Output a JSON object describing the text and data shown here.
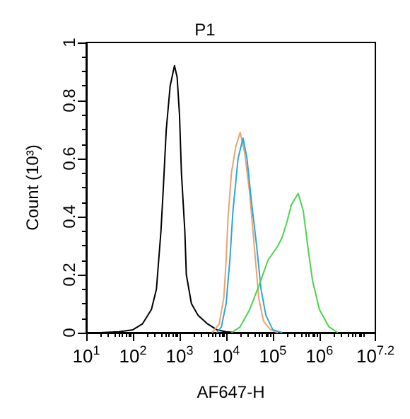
{
  "chart_data": {
    "type": "line",
    "title": "P1",
    "xlabel": "AF647-H",
    "ylabel": "Count (10³)",
    "log": "x",
    "grid": false,
    "marker": "none",
    "line_style": "solid",
    "xlim": [
      10,
      15848932
    ],
    "xticks": [
      {
        "value": 10,
        "label": "10$^{1}$"
      },
      {
        "value": 100,
        "label": "10$^{2}$"
      },
      {
        "value": 1000,
        "label": "10$^{3}$"
      },
      {
        "value": 10000,
        "label": "10$^{4}$"
      },
      {
        "value": 100000,
        "label": "10$^{5}$"
      },
      {
        "value": 1000000,
        "label": "10$^{6}$"
      },
      {
        "value": 15848932,
        "label": "10$^{7.2}$"
      }
    ],
    "ylim": [
      0,
      1
    ],
    "yticks": [
      0,
      0.2,
      0.4,
      0.6,
      0.8,
      1
    ],
    "series": [
      {
        "color": "#000000",
        "x": [
          20,
          50,
          100,
          160,
          250,
          320,
          400,
          450,
          520,
          630,
          780,
          890,
          1000,
          1100,
          1300,
          1400,
          1800,
          2500,
          4000,
          6300,
          10000,
          16000
        ],
        "values": [
          0,
          0.003,
          0.01,
          0.03,
          0.08,
          0.15,
          0.35,
          0.5,
          0.7,
          0.85,
          0.92,
          0.88,
          0.75,
          0.55,
          0.35,
          0.2,
          0.1,
          0.06,
          0.03,
          0.01,
          0.003,
          0
        ]
      },
      {
        "color": "#f0a070",
        "x": [
          5000,
          7100,
          8900,
          10000,
          11000,
          13000,
          16000,
          20000,
          25000,
          32000,
          40000,
          50000,
          63000,
          89000,
          130000
        ],
        "values": [
          0,
          0.03,
          0.12,
          0.25,
          0.4,
          0.55,
          0.64,
          0.69,
          0.62,
          0.48,
          0.3,
          0.12,
          0.04,
          0.01,
          0
        ]
      },
      {
        "color": "#29a8d8",
        "x": [
          6300,
          7900,
          10000,
          12000,
          14000,
          18000,
          23000,
          28000,
          35000,
          45000,
          56000,
          71000,
          100000,
          160000
        ],
        "values": [
          0,
          0.02,
          0.1,
          0.25,
          0.42,
          0.6,
          0.67,
          0.6,
          0.45,
          0.3,
          0.15,
          0.06,
          0.01,
          0
        ]
      },
      {
        "color": "#4cd44c",
        "x": [
          13000,
          20000,
          32000,
          50000,
          79000,
          130000,
          160000,
          200000,
          250000,
          350000,
          450000,
          560000,
          710000,
          1000000,
          1600000,
          2500000
        ],
        "values": [
          0,
          0.02,
          0.08,
          0.16,
          0.25,
          0.3,
          0.33,
          0.38,
          0.44,
          0.48,
          0.42,
          0.3,
          0.18,
          0.08,
          0.02,
          0
        ]
      }
    ]
  }
}
